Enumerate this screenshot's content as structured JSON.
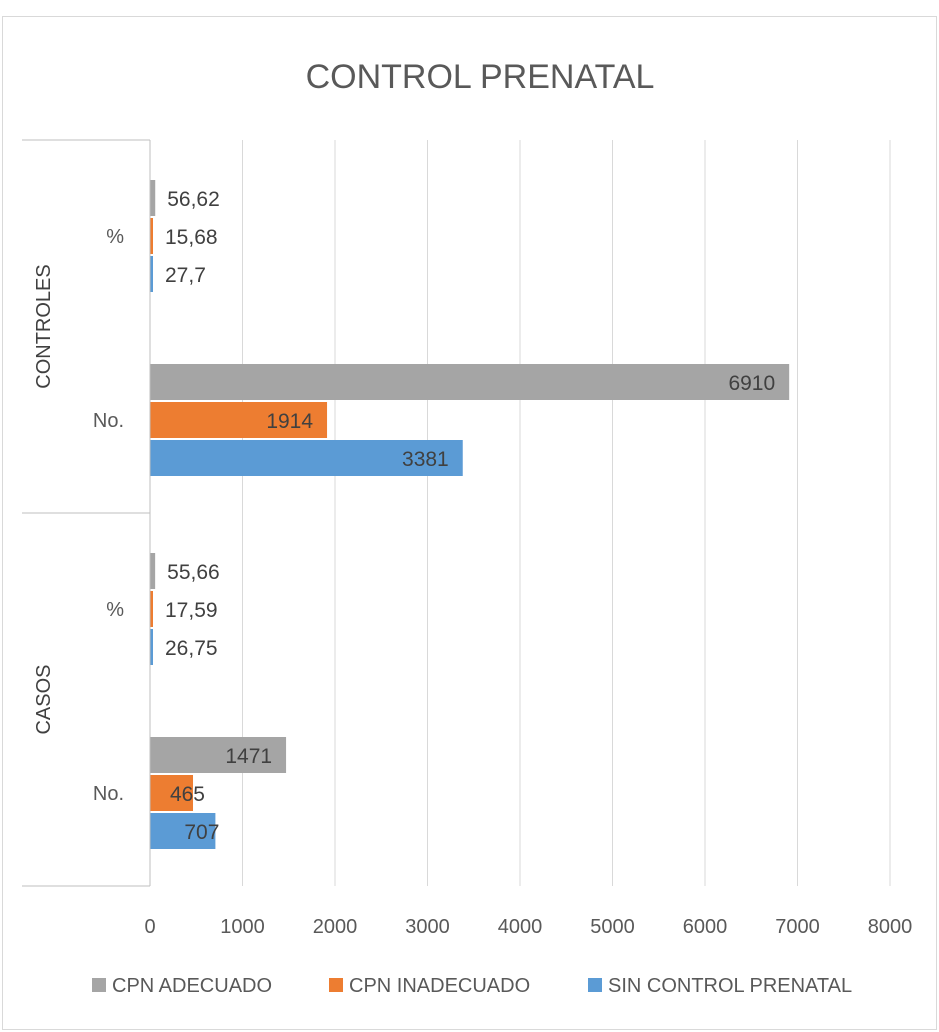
{
  "chart_data": {
    "type": "bar",
    "orientation": "horizontal",
    "title": "CONTROL PRENATAL",
    "xlim": [
      0,
      8000
    ],
    "x_ticks": [
      "0",
      "1000",
      "2000",
      "3000",
      "4000",
      "5000",
      "6000",
      "7000",
      "8000"
    ],
    "grid": true,
    "legend_position": "bottom",
    "groups": [
      {
        "name": "CONTROLES",
        "categories": [
          {
            "label": "%",
            "values": [
              {
                "series": "CPN ADECUADO",
                "value": 56.62,
                "label": "56,62"
              },
              {
                "series": "CPN INADECUADO",
                "value": 15.68,
                "label": "15,68"
              },
              {
                "series": "SIN CONTROL PRENATAL",
                "value": 27.7,
                "label": "27,7"
              }
            ]
          },
          {
            "label": "No.",
            "values": [
              {
                "series": "CPN ADECUADO",
                "value": 6910,
                "label": "6910"
              },
              {
                "series": "CPN INADECUADO",
                "value": 1914,
                "label": "1914"
              },
              {
                "series": "SIN CONTROL PRENATAL",
                "value": 3381,
                "label": "3381"
              }
            ]
          }
        ]
      },
      {
        "name": "CASOS",
        "categories": [
          {
            "label": "%",
            "values": [
              {
                "series": "CPN ADECUADO",
                "value": 55.66,
                "label": "55,66"
              },
              {
                "series": "CPN INADECUADO",
                "value": 17.59,
                "label": "17,59"
              },
              {
                "series": "SIN CONTROL PRENATAL",
                "value": 26.75,
                "label": "26,75"
              }
            ]
          },
          {
            "label": "No.",
            "values": [
              {
                "series": "CPN ADECUADO",
                "value": 1471,
                "label": "1471"
              },
              {
                "series": "CPN INADECUADO",
                "value": 465,
                "label": "465"
              },
              {
                "series": "SIN CONTROL PRENATAL",
                "value": 707,
                "label": "707"
              }
            ]
          }
        ]
      }
    ],
    "series": [
      {
        "name": "CPN ADECUADO",
        "color": "#a5a5a5"
      },
      {
        "name": "CPN INADECUADO",
        "color": "#ed7d31"
      },
      {
        "name": "SIN CONTROL PRENATAL",
        "color": "#5b9bd5"
      }
    ]
  }
}
